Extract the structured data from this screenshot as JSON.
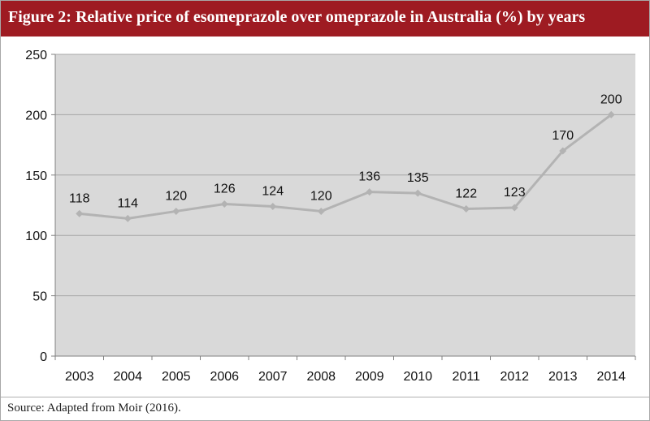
{
  "figure": {
    "title": "Figure 2: Relative price of esomeprazole over omeprazole in Australia (%) by years",
    "source": "Source: Adapted from Moir (2016)."
  },
  "colors": {
    "title_bar": "#9e1b22",
    "plot_background": "#d9d9d9",
    "line": "#b3b3b3",
    "gridline": "#a6a6a6"
  },
  "chart_data": {
    "type": "line",
    "categories": [
      "2003",
      "2004",
      "2005",
      "2006",
      "2007",
      "2008",
      "2009",
      "2010",
      "2011",
      "2012",
      "2013",
      "2014"
    ],
    "values": [
      118,
      114,
      120,
      126,
      124,
      120,
      136,
      135,
      122,
      123,
      170,
      200
    ],
    "data_labels": [
      "118",
      "114",
      "120",
      "126",
      "124",
      "120",
      "136",
      "135",
      "122",
      "123",
      "170",
      "200"
    ],
    "ylim": [
      0,
      250
    ],
    "y_ticks": [
      0,
      50,
      100,
      150,
      200,
      250
    ],
    "y_tick_labels": [
      "0",
      "50",
      "100",
      "150",
      "200",
      "250"
    ],
    "xlabel": "",
    "ylabel": "",
    "grid": true,
    "markers": "diamond",
    "legend": "none"
  }
}
